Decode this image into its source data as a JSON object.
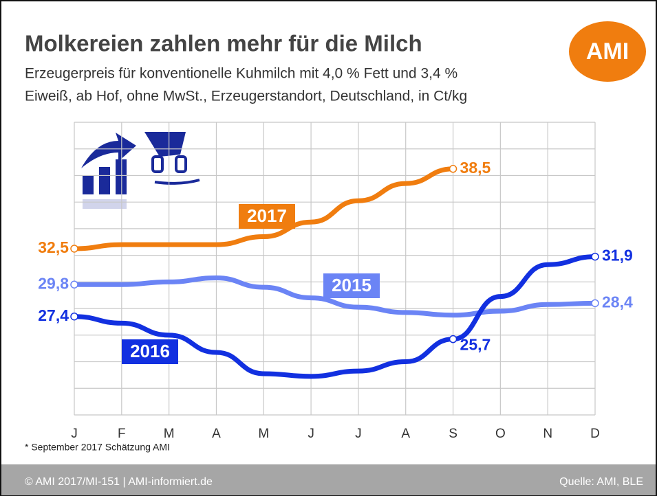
{
  "chart_data": {
    "type": "line",
    "title": "Molkereien zahlen mehr für die Milch",
    "subtitle": [
      "Erzeugerpreis für konventionelle Kuhmilch mit 4,0 % Fett und 3,4 %",
      "Eiweiß, ab Hof, ohne MwSt., Erzeugerstandort, Deutschland, in Ct/kg"
    ],
    "logo": "AMI",
    "categories": [
      "J",
      "F",
      "M",
      "A",
      "M",
      "J",
      "J",
      "A",
      "S",
      "O",
      "N",
      "D"
    ],
    "ylim": [
      20,
      42
    ],
    "yticks": [
      20,
      22,
      24,
      26,
      28,
      30,
      32,
      34,
      36,
      38,
      40,
      42
    ],
    "grid": true,
    "series": [
      {
        "name": "2015",
        "color": "#6b84f5",
        "values": [
          29.8,
          29.8,
          30.0,
          30.3,
          29.6,
          28.8,
          28.1,
          27.7,
          27.5,
          27.8,
          28.3,
          28.4
        ],
        "value_labels": [
          "29,8",
          null,
          null,
          null,
          null,
          null,
          null,
          null,
          null,
          null,
          null,
          "28,4"
        ]
      },
      {
        "name": "2016",
        "color": "#1230e0",
        "values": [
          27.4,
          26.9,
          26.0,
          24.7,
          23.1,
          22.9,
          23.3,
          24.0,
          25.7,
          28.9,
          31.3,
          31.9
        ],
        "value_labels": [
          "27,4",
          null,
          null,
          null,
          null,
          null,
          null,
          null,
          "25,7",
          null,
          null,
          "31,9"
        ]
      },
      {
        "name": "2017",
        "color": "#f07d0f",
        "values": [
          32.5,
          32.8,
          32.8,
          32.8,
          33.4,
          34.5,
          36.1,
          37.4,
          38.5,
          null,
          null,
          null
        ],
        "value_labels": [
          "32,5",
          null,
          null,
          null,
          null,
          null,
          null,
          null,
          "38,5",
          null,
          null,
          null
        ]
      }
    ],
    "footnote": "* September 2017 Schätzung AMI",
    "footer_left": "© AMI 2017/MI-151 | AMI-informiert.de",
    "footer_right": "Quelle: AMI, BLE"
  }
}
